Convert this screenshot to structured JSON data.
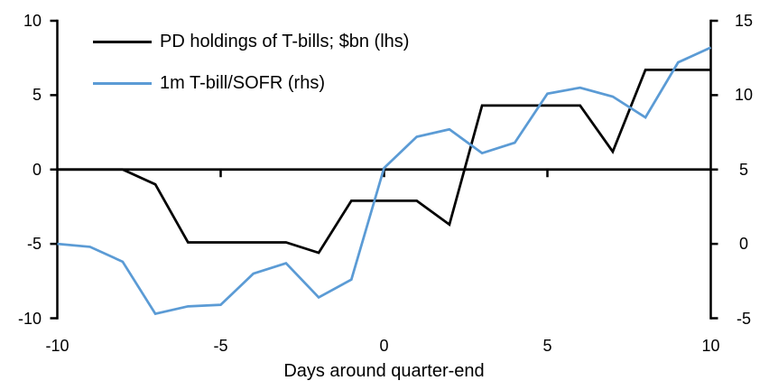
{
  "chart_data": {
    "type": "line",
    "title": "",
    "xlabel": "Days around quarter-end",
    "grid": false,
    "legend_position": "top-left",
    "background": "#ffffff",
    "axis_color": "#000000",
    "x": [
      -10,
      -9,
      -8,
      -7,
      -6,
      -5,
      -4,
      -3,
      -2,
      -1,
      0,
      1,
      2,
      3,
      4,
      5,
      6,
      7,
      8,
      9,
      10
    ],
    "series": [
      {
        "name": "PD holdings of T-bills; $bn (lhs)",
        "axis": "left",
        "color": "#000000",
        "values": [
          0,
          0,
          0,
          -1.0,
          -4.9,
          -4.9,
          -4.9,
          -4.9,
          -5.6,
          -2.1,
          -2.1,
          -2.1,
          -3.7,
          4.3,
          4.3,
          4.3,
          4.3,
          1.2,
          6.7,
          6.7,
          6.7
        ]
      },
      {
        "name": "1m T-bill/SOFR (rhs)",
        "axis": "right",
        "color": "#5B9BD5",
        "values": [
          0.0,
          -0.2,
          -1.2,
          -4.7,
          -4.2,
          -4.1,
          -2.0,
          -1.3,
          -3.6,
          -2.4,
          5.1,
          7.2,
          7.7,
          6.1,
          6.8,
          10.1,
          10.5,
          9.9,
          8.5,
          12.2,
          13.2
        ]
      }
    ],
    "left_axis": {
      "range": [
        -10,
        10
      ],
      "ticks": [
        10,
        5,
        0,
        -5,
        -10
      ],
      "tick_labels": [
        "10",
        "5",
        "0",
        "-5",
        "-10"
      ]
    },
    "right_axis": {
      "range": [
        -5,
        15
      ],
      "ticks": [
        15,
        10,
        5,
        0,
        -5
      ],
      "tick_labels": [
        "15",
        "10",
        "5",
        "0",
        "-5"
      ]
    },
    "x_axis": {
      "range": [
        -10,
        10
      ],
      "ticks": [
        -10,
        -5,
        0,
        5,
        10
      ],
      "tick_labels": [
        "-10",
        "-5",
        "0",
        "5",
        "10"
      ],
      "label": "Days around quarter-end",
      "baseline_at_left_value": 0
    }
  }
}
